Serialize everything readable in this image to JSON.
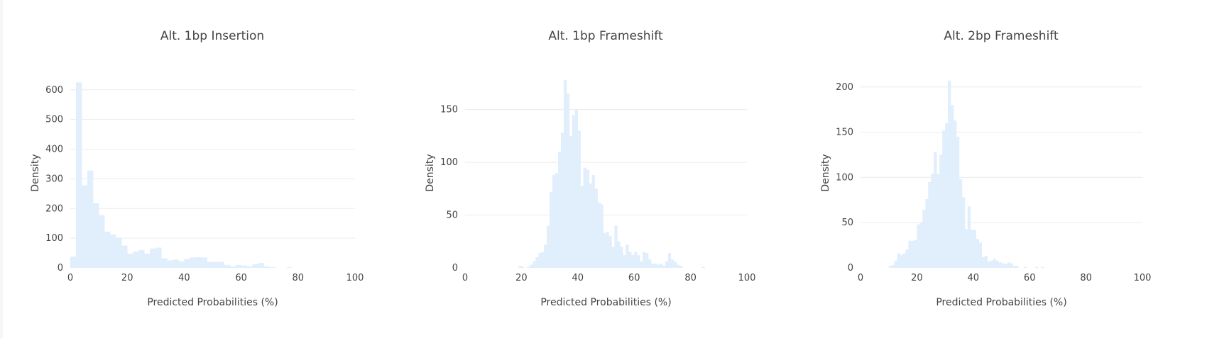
{
  "chart_data": [
    {
      "type": "bar",
      "title": "Alt. 1bp Insertion",
      "xlabel": "Predicted Probabilities (%)",
      "ylabel": "Density",
      "xlim": [
        0,
        100
      ],
      "ylim": [
        0,
        640
      ],
      "xticks": [
        0,
        20,
        40,
        60,
        80,
        100
      ],
      "yticks": [
        0,
        100,
        200,
        300,
        400,
        500,
        600
      ],
      "grid": true,
      "bin_width": 2,
      "x": [
        0,
        2,
        4,
        6,
        8,
        10,
        12,
        14,
        16,
        18,
        20,
        22,
        24,
        26,
        28,
        30,
        32,
        34,
        36,
        38,
        40,
        42,
        44,
        46,
        48,
        50,
        52,
        54,
        56,
        58,
        60,
        62,
        64,
        66,
        68,
        70,
        72,
        74,
        76,
        78,
        80,
        82,
        84,
        86,
        88,
        90,
        92,
        94,
        96,
        98
      ],
      "values": [
        38,
        625,
        278,
        328,
        218,
        178,
        122,
        112,
        102,
        75,
        48,
        55,
        60,
        48,
        65,
        68,
        32,
        25,
        28,
        22,
        30,
        35,
        36,
        35,
        20,
        20,
        20,
        10,
        5,
        10,
        8,
        5,
        12,
        16,
        5,
        2,
        0,
        0,
        2,
        0,
        0,
        0,
        0,
        0,
        0,
        0,
        0,
        0,
        0,
        0
      ]
    },
    {
      "type": "bar",
      "title": "Alt. 1bp Frameshift",
      "xlabel": "Predicted Probabilities (%)",
      "ylabel": "Density",
      "xlim": [
        0,
        100
      ],
      "ylim": [
        0,
        180
      ],
      "xticks": [
        0,
        20,
        40,
        60,
        80,
        100
      ],
      "yticks": [
        0,
        50,
        100,
        150
      ],
      "grid": true,
      "bin_width": 1,
      "x": [
        18,
        19,
        20,
        21,
        22,
        23,
        24,
        25,
        26,
        27,
        28,
        29,
        30,
        31,
        32,
        33,
        34,
        35,
        36,
        37,
        38,
        39,
        40,
        41,
        42,
        43,
        44,
        45,
        46,
        47,
        48,
        49,
        50,
        51,
        52,
        53,
        54,
        55,
        56,
        57,
        58,
        59,
        60,
        61,
        62,
        63,
        64,
        65,
        66,
        67,
        68,
        69,
        70,
        71,
        72,
        73,
        74,
        75,
        76,
        77,
        78,
        79,
        80,
        81,
        82,
        83,
        84,
        85
      ],
      "values": [
        0,
        2,
        1,
        0,
        1,
        3,
        6,
        10,
        14,
        15,
        22,
        40,
        72,
        88,
        90,
        110,
        128,
        178,
        165,
        125,
        145,
        150,
        130,
        78,
        95,
        93,
        80,
        88,
        75,
        62,
        60,
        33,
        34,
        30,
        20,
        40,
        25,
        20,
        12,
        22,
        15,
        12,
        15,
        12,
        6,
        15,
        14,
        8,
        4,
        4,
        3,
        4,
        2,
        6,
        14,
        8,
        6,
        3,
        2,
        0,
        0,
        0,
        0,
        0,
        0,
        0,
        1,
        0
      ]
    },
    {
      "type": "bar",
      "title": "Alt. 2bp Frameshift",
      "xlabel": "Predicted Probabilities (%)",
      "ylabel": "Density",
      "xlim": [
        0,
        100
      ],
      "ylim": [
        0,
        210
      ],
      "xticks": [
        0,
        20,
        40,
        60,
        80,
        100
      ],
      "yticks": [
        0,
        50,
        100,
        150,
        200
      ],
      "grid": true,
      "bin_width": 1,
      "x": [
        10,
        11,
        12,
        13,
        14,
        15,
        16,
        17,
        18,
        19,
        20,
        21,
        22,
        23,
        24,
        25,
        26,
        27,
        28,
        29,
        30,
        31,
        32,
        33,
        34,
        35,
        36,
        37,
        38,
        39,
        40,
        41,
        42,
        43,
        44,
        45,
        46,
        47,
        48,
        49,
        50,
        51,
        52,
        53,
        54,
        55,
        56,
        57,
        58,
        59,
        60,
        61,
        62,
        63,
        64,
        65,
        66,
        67
      ],
      "values": [
        2,
        3,
        8,
        16,
        14,
        16,
        20,
        30,
        30,
        31,
        48,
        50,
        64,
        76,
        95,
        104,
        128,
        104,
        125,
        152,
        160,
        207,
        180,
        163,
        145,
        98,
        78,
        43,
        68,
        42,
        42,
        32,
        28,
        12,
        13,
        7,
        8,
        10,
        8,
        6,
        5,
        4,
        6,
        5,
        2,
        2,
        0,
        0,
        1,
        0,
        0,
        0,
        1,
        0,
        1,
        0,
        0,
        0
      ]
    }
  ]
}
